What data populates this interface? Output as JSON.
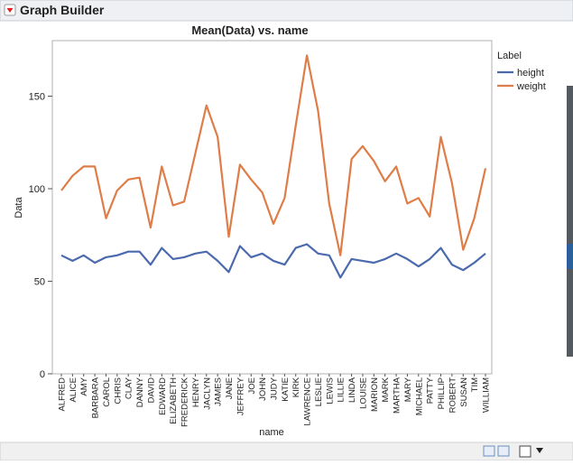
{
  "window_title": "Graph Builder",
  "chart_data": {
    "type": "line",
    "title": "Mean(Data) vs. name",
    "x_label": "name",
    "y_label": "Data",
    "legend_title": "Label",
    "categories": [
      "ALFRED",
      "ALICE",
      "AMY",
      "BARBARA",
      "CAROL",
      "CHRIS",
      "CLAY",
      "DANNY",
      "DAVID",
      "EDWARD",
      "ELIZABETH",
      "FREDERICK",
      "HENRY",
      "JACLYN",
      "JAMES",
      "JANE",
      "JEFFREY",
      "JOE",
      "JOHN",
      "JUDY",
      "KATIE",
      "KIRK",
      "LAWRENCE",
      "LESLIE",
      "LEWIS",
      "LILLIE",
      "LINDA",
      "LOUISE",
      "MARION",
      "MARK",
      "MARTHA",
      "MARY",
      "MICHAEL",
      "PATTY",
      "PHILLIP",
      "ROBERT",
      "SUSAN",
      "TIM",
      "WILLIAM"
    ],
    "series": [
      {
        "name": "height",
        "color": "#4a6aad",
        "values": [
          64,
          61,
          64,
          60,
          63,
          64,
          66,
          66,
          59,
          68,
          62,
          63,
          65,
          66,
          61,
          55,
          69,
          63,
          65,
          61,
          59,
          68,
          70,
          65,
          64,
          52,
          62,
          61,
          60,
          62,
          65,
          62,
          58,
          62,
          68,
          59,
          56,
          60,
          65
        ]
      },
      {
        "name": "weight",
        "color": "#de7d48",
        "values": [
          99,
          107,
          112,
          112,
          84,
          99,
          105,
          106,
          79,
          112,
          91,
          93,
          119,
          145,
          128,
          74,
          113,
          105,
          98,
          81,
          95,
          134,
          172,
          142,
          92,
          64,
          116,
          123,
          115,
          104,
          112,
          92,
          95,
          85,
          128,
          103,
          67,
          84,
          111
        ]
      }
    ],
    "ylim": [
      0,
      180
    ],
    "yticks": [
      0,
      50,
      100,
      150
    ]
  }
}
